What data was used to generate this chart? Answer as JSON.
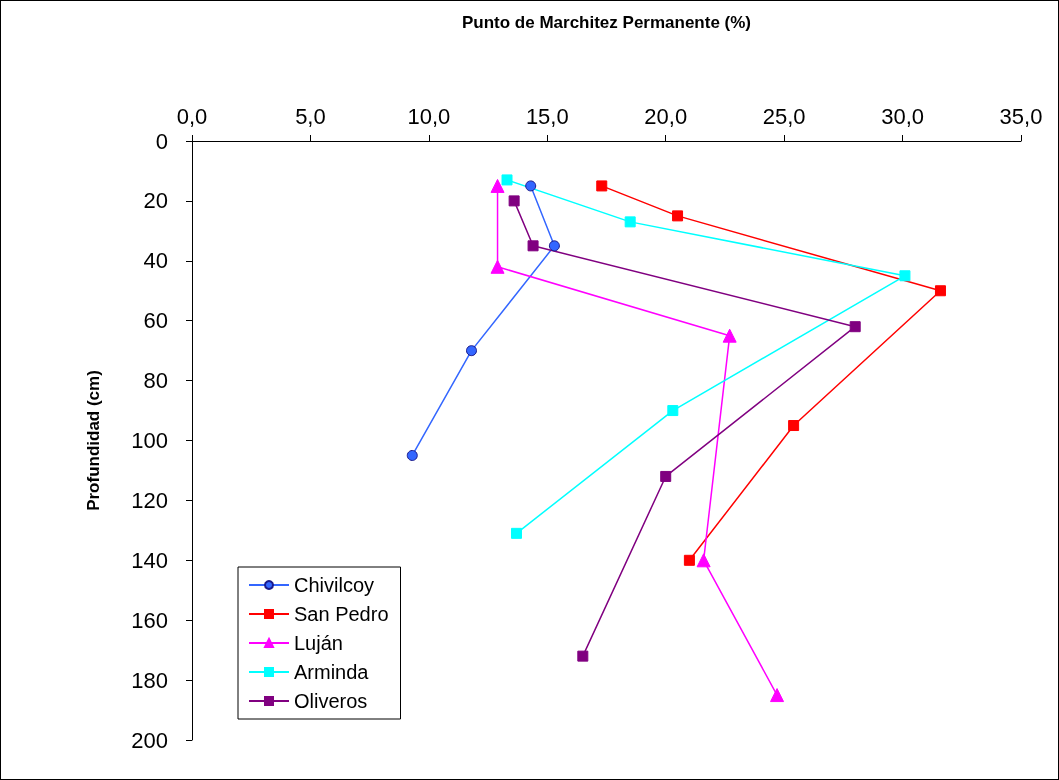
{
  "chart_data": {
    "type": "line",
    "xlabel": "Punto de Marchitez Permanente (%)",
    "ylabel": "Profundidad (cm)",
    "xlim": [
      0,
      35
    ],
    "xticks": [
      {
        "value": 0,
        "label": "0,0"
      },
      {
        "value": 5,
        "label": "5,0"
      },
      {
        "value": 10,
        "label": "10,0"
      },
      {
        "value": 15,
        "label": "15,0"
      },
      {
        "value": 20,
        "label": "20,0"
      },
      {
        "value": 25,
        "label": "25,0"
      },
      {
        "value": 30,
        "label": "30,0"
      },
      {
        "value": 35,
        "label": "35,0"
      }
    ],
    "ylim": [
      200,
      0
    ],
    "yticks": [
      0,
      20,
      40,
      60,
      80,
      100,
      120,
      140,
      160,
      180,
      200
    ],
    "grid": false,
    "legend": "bottom left",
    "line_style": "solid",
    "series": [
      {
        "name": "Chivilcoy",
        "color": "#3366ff",
        "marker": "circle",
        "x": [
          14.3,
          15.3,
          11.8,
          9.3
        ],
        "values": [
          15,
          35,
          70,
          105
        ]
      },
      {
        "name": "San Pedro",
        "color": "#ff0000",
        "marker": "square",
        "x": [
          17.3,
          20.5,
          31.6,
          25.4,
          21.0
        ],
        "values": [
          15,
          25,
          50,
          95,
          140
        ]
      },
      {
        "name": "Luján",
        "color": "#ff00ff",
        "marker": "triangle",
        "x": [
          12.9,
          12.9,
          22.7,
          21.6,
          24.7
        ],
        "values": [
          15,
          42,
          65,
          140,
          185
        ]
      },
      {
        "name": "Arminda",
        "color": "#00ffff",
        "marker": "square",
        "x": [
          13.3,
          18.5,
          30.1,
          20.3,
          13.7
        ],
        "values": [
          13,
          27,
          45,
          90,
          131
        ]
      },
      {
        "name": "Oliveros",
        "color": "#800080",
        "marker": "square",
        "x": [
          13.6,
          14.4,
          28.0,
          20.0,
          16.5
        ],
        "values": [
          20,
          35,
          62,
          112,
          172
        ]
      }
    ]
  }
}
